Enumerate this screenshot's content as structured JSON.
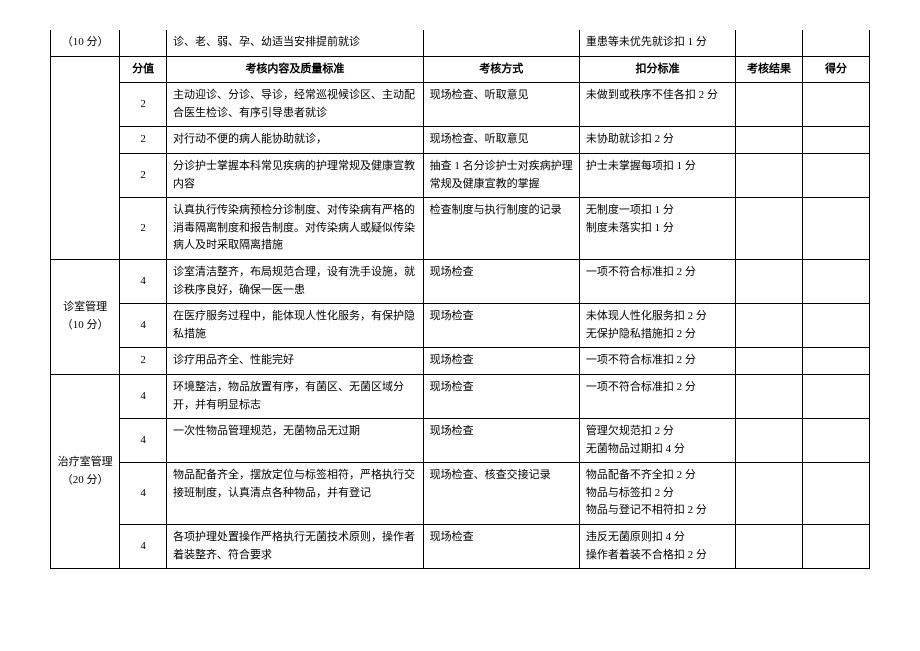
{
  "table": {
    "headers": {
      "score": "分值",
      "content": "考核内容及质量标准",
      "method": "考核方式",
      "deduction": "扣分标准",
      "result": "考核结果",
      "final": "得分"
    },
    "categories": {
      "cat1": "（10 分）",
      "cat2_line1": "诊室管理",
      "cat2_line2": "（10 分）",
      "cat3_line1": "治疗室管理",
      "cat3_line2": "（20 分）"
    },
    "rows": [
      {
        "content": "诊、老、弱、孕、幼适当安排提前就诊",
        "method": "",
        "deduction": "重患等未优先就诊扣 1 分"
      },
      {
        "score": "2",
        "content": "主动迎诊、分诊、导诊，经常巡视候诊区、主动配合医生检诊、有序引导患者就诊",
        "method": "现场检查、听取意见",
        "deduction": "未做到或秩序不佳各扣 2 分"
      },
      {
        "score": "2",
        "content": "对行动不便的病人能协助就诊，",
        "method": "现场检查、听取意见",
        "deduction": "未协助就诊扣 2 分"
      },
      {
        "score": "2",
        "content": "分诊护士掌握本科常见疾病的护理常规及健康宣教内容",
        "method": "抽查 1 名分诊护士对疾病护理常规及健康宣教的掌握",
        "deduction": "护士未掌握每项扣 1 分"
      },
      {
        "score": "2",
        "content": "认真执行传染病预检分诊制度、对传染病有严格的消毒隔离制度和报告制度。对传染病人或疑似传染病人及时采取隔离措施",
        "method": "检查制度与执行制度的记录",
        "deduction": "无制度一项扣 1 分\n制度未落实扣 1 分"
      },
      {
        "score": "4",
        "content": "诊室清洁整齐，布局规范合理，设有洗手设施，就诊秩序良好，确保一医一患",
        "method": "现场检查",
        "deduction": "一项不符合标准扣 2 分"
      },
      {
        "score": "4",
        "content": "在医疗服务过程中，能体现人性化服务，有保护隐私措施",
        "method": "现场检查",
        "deduction": "未体现人性化服务扣 2 分\n无保护隐私措施扣 2 分"
      },
      {
        "score": "2",
        "content": "诊疗用品齐全、性能完好",
        "method": "现场检查",
        "deduction": "一项不符合标准扣 2 分"
      },
      {
        "score": "4",
        "content": "环境整洁，物品放置有序，有菌区、无菌区域分开，并有明显标志",
        "method": "现场检查",
        "deduction": "一项不符合标准扣 2 分"
      },
      {
        "score": "4",
        "content": "一次性物品管理规范，无菌物品无过期",
        "method": "现场检查",
        "deduction": "管理欠规范扣 2 分\n无菌物品过期扣 4 分"
      },
      {
        "score": "4",
        "content": "物品配备齐全，摆放定位与标签相符，严格执行交接班制度，认真清点各种物品，并有登记",
        "method": "现场检查、核查交接记录",
        "deduction": "物品配备不齐全扣 2 分\n物品与标签扣 2 分\n物品与登记不相符扣 2 分"
      },
      {
        "score": "4",
        "content": "各项护理处置操作严格执行无菌技术原则，操作者着装整齐、符合要求",
        "method": "现场检查",
        "deduction": "违反无菌原则扣 4 分\n操作者着装不合格扣 2 分"
      }
    ]
  }
}
